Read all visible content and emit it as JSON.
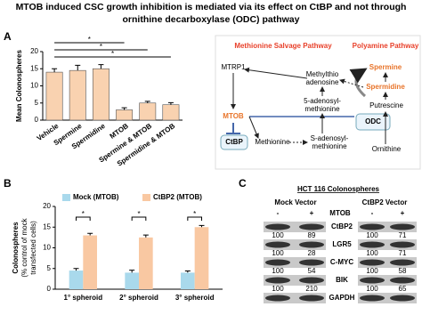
{
  "title": [
    "MTOB induced CSC growth inhibition is mediated via its effect on CtBP and not through",
    "ornithine decarboxylase (ODC) pathway"
  ],
  "panel_labels": [
    "A",
    "B",
    "C"
  ],
  "chart_data": [
    {
      "type": "bar",
      "ylabel": "Mean Colonospheres",
      "categories": [
        "Vehicle",
        "Spermine",
        "Spermidine",
        "MTOB",
        "Spermine & MTOB",
        "Spermidine & MTOB"
      ],
      "values": [
        14,
        14.5,
        15,
        3,
        5,
        4.5
      ],
      "errors": [
        1,
        1.5,
        1.2,
        0.6,
        0.5,
        0.6
      ],
      "color": "#f9d2b0",
      "ylim": [
        0,
        20
      ],
      "yticks": [
        0,
        5,
        10,
        15,
        20
      ],
      "annotations": [
        "*",
        "*",
        "*"
      ]
    },
    {
      "type": "grouped-bar",
      "ylabel": [
        "Colonospheres",
        "(% control of mock",
        "transfected cells)"
      ],
      "categories": [
        "1° spheroid",
        "2° spheroid",
        "3° spheroid"
      ],
      "series": [
        {
          "name": "Mock (MTOB)",
          "color": "#a9d9ec",
          "values": [
            4.5,
            4,
            4
          ],
          "errors": [
            0.5,
            0.6,
            0.4
          ]
        },
        {
          "name": "CtBP2 (MTOB)",
          "color": "#f9c8a2",
          "values": [
            13,
            12.5,
            15
          ],
          "errors": [
            0.5,
            0.6,
            0.4
          ]
        }
      ],
      "ylim": [
        0,
        20
      ],
      "yticks": [
        0,
        5,
        10,
        15,
        20
      ],
      "annotations": [
        "*",
        "*",
        "*"
      ]
    }
  ],
  "pathway": {
    "salvage": "Methionine Salvage Pathway",
    "polyamine": "Polyamine Pathway",
    "spermine": "Spermine",
    "spermidine": "Spermidine",
    "mtrp1": "MTRP1",
    "mta": [
      "Methylthio",
      "adenosine"
    ],
    "mtob": "MTOB",
    "sam1": [
      "5-adenosyl-",
      "methionine"
    ],
    "odc": "ODC",
    "putrescine": "Putrescine",
    "ctbp": "CtBP",
    "methionine": "Methionine",
    "sam2": [
      "S-adenosyl-",
      "methionine"
    ],
    "ornithine": "Ornithine"
  },
  "blot": {
    "title": "HCT 116 Colonospheres",
    "groups": [
      "Mock Vector",
      "CtBP2 Vector"
    ],
    "treatment": "MTOB",
    "signs": [
      "-",
      "+",
      "-",
      "+"
    ],
    "rows": [
      {
        "label": "CtBP2",
        "values": [
          100,
          89,
          100,
          71
        ]
      },
      {
        "label": "LGR5",
        "values": [
          100,
          28,
          100,
          71
        ]
      },
      {
        "label": "C-MYC",
        "values": [
          100,
          54,
          100,
          58
        ]
      },
      {
        "label": "BIK",
        "values": [
          100,
          210,
          100,
          65
        ]
      },
      {
        "label": "GAPDH"
      }
    ]
  }
}
